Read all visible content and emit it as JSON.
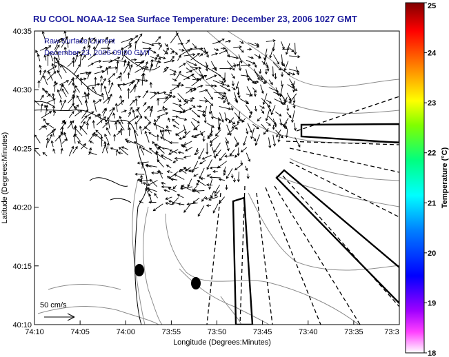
{
  "title": "RU COOL  NOAA-12  Sea Surface Temperature:  December 23, 2006 1027 GMT",
  "legend": {
    "line1": "Raw Surface Current",
    "line2": "December 23, 2006 09:00 GMT",
    "scale_label": "50 cm/s"
  },
  "axes": {
    "xlabel": "Longitude (Degrees:Minutes)",
    "ylabel": "Latitude (Degrees:Minutes)",
    "xticks": [
      "74:10",
      "74:05",
      "74:00",
      "73:55",
      "73:50",
      "73:45",
      "73:40",
      "73:35",
      "73:3"
    ],
    "yticks": [
      "40:35",
      "40:30",
      "40:25",
      "40:20",
      "40:15",
      "40:10"
    ]
  },
  "colorbar": {
    "label": "Temperature (°C)",
    "ticks": [
      "25",
      "24",
      "23",
      "22",
      "21",
      "20",
      "19",
      "18"
    ],
    "range": [
      18,
      25
    ],
    "colors": [
      "#ff00ff",
      "#0000ff",
      "#00ffff",
      "#00ff00",
      "#ffff00",
      "#ff8000",
      "#ff0000",
      "#800000"
    ]
  },
  "colors": {
    "title": "#1c1c9c",
    "coast": "#000000",
    "contour": "#8c8c8c"
  }
}
